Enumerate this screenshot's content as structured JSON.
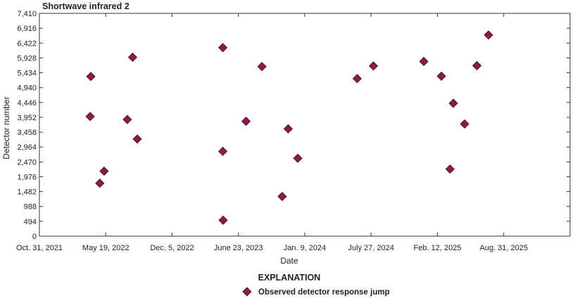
{
  "chart_data": {
    "type": "scatter",
    "title": "Shortwave infrared 2",
    "xlabel": "Date",
    "ylabel": "Detector number",
    "x_axis": "date",
    "xlim": [
      "2021-10-31",
      "2026-03-19"
    ],
    "xticks": [
      "2021-10-31",
      "2022-05-19",
      "2022-12-05",
      "2023-06-23",
      "2024-01-09",
      "2024-07-27",
      "2025-02-12",
      "2025-08-31"
    ],
    "xtick_labels": [
      "Oct. 31, 2021",
      "May 19, 2022",
      "Dec. 5, 2022",
      "June 23, 2023",
      "Jan. 9, 2024",
      "July 27, 2024",
      "Feb. 12, 2025",
      "Aug. 31, 2025"
    ],
    "ylim": [
      0,
      7410
    ],
    "yticks": [
      0,
      494,
      988,
      1482,
      1976,
      2470,
      2964,
      3458,
      3952,
      4446,
      4940,
      5434,
      5928,
      6422,
      6916,
      7410
    ],
    "ytick_labels": [
      "0",
      "494",
      "988",
      "1,482",
      "1,976",
      "2,470",
      "2,964",
      "3,458",
      "3,952",
      "4,446",
      "4,940",
      "5,434",
      "5,928",
      "6,422",
      "6,916",
      "7,410"
    ],
    "grid": false,
    "legend_title": "EXPLANATION",
    "series": [
      {
        "name": "Observed detector response jump",
        "color": "#8b1a50",
        "marker": "diamond",
        "points": [
          {
            "x": "2022-04-04",
            "y": 5310
          },
          {
            "x": "2022-04-02",
            "y": 3980
          },
          {
            "x": "2022-05-01",
            "y": 1760
          },
          {
            "x": "2022-05-14",
            "y": 2160
          },
          {
            "x": "2022-07-23",
            "y": 3880
          },
          {
            "x": "2022-08-08",
            "y": 5950
          },
          {
            "x": "2022-08-22",
            "y": 3230
          },
          {
            "x": "2023-05-07",
            "y": 6270
          },
          {
            "x": "2023-05-07",
            "y": 2820
          },
          {
            "x": "2023-05-08",
            "y": 530
          },
          {
            "x": "2023-07-16",
            "y": 3820
          },
          {
            "x": "2023-09-02",
            "y": 5640
          },
          {
            "x": "2023-11-02",
            "y": 1320
          },
          {
            "x": "2023-11-20",
            "y": 3570
          },
          {
            "x": "2023-12-19",
            "y": 2590
          },
          {
            "x": "2024-06-15",
            "y": 5240
          },
          {
            "x": "2024-08-03",
            "y": 5660
          },
          {
            "x": "2025-01-02",
            "y": 5810
          },
          {
            "x": "2025-02-24",
            "y": 5320
          },
          {
            "x": "2025-03-22",
            "y": 2230
          },
          {
            "x": "2025-04-01",
            "y": 4420
          },
          {
            "x": "2025-05-05",
            "y": 3730
          },
          {
            "x": "2025-06-11",
            "y": 5670
          },
          {
            "x": "2025-07-16",
            "y": 6690
          }
        ]
      }
    ]
  }
}
